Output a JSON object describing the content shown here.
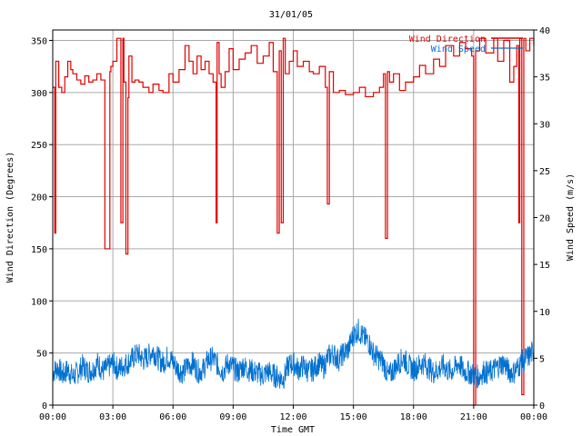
{
  "chart_data": {
    "type": "line",
    "title": "31/01/05",
    "xlabel": "Time GMT",
    "ylabel_left": "Wind Direction (Degrees)",
    "ylabel_right": "Wind Speed (m/s)",
    "x_ticks": [
      "00:00",
      "03:00",
      "06:00",
      "09:00",
      "12:00",
      "15:00",
      "18:00",
      "21:00",
      "00:00"
    ],
    "y_left_ticks": [
      0,
      50,
      100,
      150,
      200,
      250,
      300,
      350
    ],
    "y_right_ticks": [
      0,
      5,
      10,
      15,
      20,
      25,
      30,
      35,
      40
    ],
    "xlim_hours": [
      0,
      24
    ],
    "ylim_left": [
      0,
      360
    ],
    "ylim_right": [
      0,
      40
    ],
    "grid": true,
    "legend_position": "top-right",
    "series": [
      {
        "name": "Wind Direction",
        "axis": "left",
        "color": "#e00000",
        "x_hours": [
          0.0,
          0.1,
          0.15,
          0.3,
          0.45,
          0.6,
          0.75,
          0.9,
          1.0,
          1.2,
          1.4,
          1.6,
          1.8,
          2.0,
          2.2,
          2.4,
          2.6,
          2.85,
          2.9,
          3.0,
          3.2,
          3.4,
          3.5,
          3.55,
          3.65,
          3.75,
          3.8,
          3.95,
          4.1,
          4.3,
          4.5,
          4.8,
          5.0,
          5.3,
          5.5,
          5.8,
          6.0,
          6.3,
          6.6,
          6.8,
          7.0,
          7.2,
          7.4,
          7.6,
          7.8,
          8.0,
          8.15,
          8.2,
          8.3,
          8.4,
          8.6,
          8.8,
          9.0,
          9.3,
          9.6,
          9.9,
          10.2,
          10.5,
          10.8,
          11.0,
          11.2,
          11.3,
          11.4,
          11.5,
          11.6,
          11.8,
          12.0,
          12.2,
          12.5,
          12.8,
          13.0,
          13.3,
          13.6,
          13.7,
          13.8,
          14.0,
          14.3,
          14.6,
          15.0,
          15.3,
          15.6,
          16.0,
          16.3,
          16.5,
          16.6,
          16.7,
          16.8,
          17.0,
          17.3,
          17.6,
          18.0,
          18.3,
          18.6,
          19.0,
          19.3,
          19.6,
          20.0,
          20.3,
          20.6,
          20.9,
          21.0,
          21.1,
          21.3,
          21.6,
          22.0,
          22.2,
          22.5,
          22.8,
          23.0,
          23.15,
          23.25,
          23.3,
          23.4,
          23.5,
          23.6,
          23.8,
          24.0
        ],
        "values": [
          305,
          165,
          330,
          305,
          300,
          315,
          330,
          322,
          318,
          312,
          308,
          316,
          310,
          312,
          318,
          312,
          150,
          320,
          325,
          330,
          352,
          175,
          352,
          310,
          145,
          295,
          335,
          310,
          312,
          310,
          305,
          300,
          308,
          302,
          300,
          318,
          310,
          322,
          345,
          330,
          318,
          335,
          322,
          330,
          318,
          310,
          175,
          348,
          318,
          305,
          320,
          342,
          322,
          332,
          338,
          345,
          328,
          335,
          348,
          320,
          165,
          340,
          175,
          352,
          318,
          330,
          340,
          325,
          330,
          320,
          318,
          325,
          305,
          193,
          320,
          300,
          302,
          298,
          300,
          305,
          296,
          300,
          305,
          318,
          160,
          320,
          310,
          318,
          302,
          310,
          315,
          326,
          318,
          332,
          325,
          345,
          335,
          348,
          342,
          335,
          0,
          340,
          352,
          338,
          352,
          330,
          350,
          310,
          325,
          345,
          175,
          352,
          10,
          352,
          340,
          352,
          345
        ]
      },
      {
        "name": "Wind Speed",
        "axis": "right",
        "color": "#0070d0",
        "x_hours": [
          0.0,
          0.25,
          0.5,
          0.75,
          1.0,
          1.25,
          1.5,
          1.75,
          2.0,
          2.25,
          2.5,
          2.75,
          3.0,
          3.25,
          3.5,
          3.75,
          4.0,
          4.25,
          4.5,
          4.75,
          5.0,
          5.25,
          5.5,
          5.75,
          6.0,
          6.25,
          6.5,
          6.75,
          7.0,
          7.25,
          7.5,
          7.75,
          8.0,
          8.25,
          8.5,
          8.75,
          9.0,
          9.25,
          9.5,
          9.75,
          10.0,
          10.25,
          10.5,
          10.75,
          11.0,
          11.25,
          11.5,
          11.75,
          12.0,
          12.25,
          12.5,
          12.75,
          13.0,
          13.25,
          13.5,
          13.75,
          14.0,
          14.25,
          14.5,
          14.75,
          15.0,
          15.25,
          15.5,
          15.75,
          16.0,
          16.25,
          16.5,
          16.75,
          17.0,
          17.25,
          17.5,
          17.75,
          18.0,
          18.25,
          18.5,
          18.75,
          19.0,
          19.25,
          19.5,
          19.75,
          20.0,
          20.25,
          20.5,
          20.75,
          21.0,
          21.25,
          21.5,
          21.75,
          22.0,
          22.25,
          22.5,
          22.75,
          23.0,
          23.25,
          23.5,
          23.75,
          24.0
        ],
        "values": [
          3.5,
          4.0,
          3.2,
          3.8,
          3.0,
          3.5,
          4.2,
          3.6,
          3.8,
          4.5,
          3.6,
          4.0,
          4.5,
          3.8,
          4.2,
          4.5,
          5.0,
          5.5,
          4.8,
          5.2,
          5.8,
          5.0,
          4.5,
          5.2,
          4.6,
          3.8,
          3.5,
          4.2,
          4.5,
          3.6,
          3.8,
          4.8,
          5.0,
          4.2,
          3.6,
          4.5,
          4.0,
          3.5,
          4.2,
          3.8,
          3.6,
          3.4,
          3.2,
          3.6,
          3.2,
          3.0,
          2.8,
          4.2,
          4.5,
          3.8,
          4.2,
          3.6,
          3.8,
          4.5,
          4.0,
          5.2,
          5.5,
          4.8,
          5.5,
          6.0,
          7.5,
          8.0,
          7.2,
          6.8,
          5.5,
          5.0,
          4.5,
          3.0,
          3.8,
          4.5,
          5.0,
          4.2,
          3.8,
          4.2,
          4.5,
          4.0,
          3.5,
          3.8,
          4.2,
          3.6,
          3.8,
          4.5,
          3.6,
          3.5,
          3.2,
          3.0,
          3.6,
          3.4,
          3.8,
          4.2,
          4.5,
          3.6,
          3.5,
          4.2,
          4.8,
          5.2,
          5.8
        ]
      }
    ]
  }
}
